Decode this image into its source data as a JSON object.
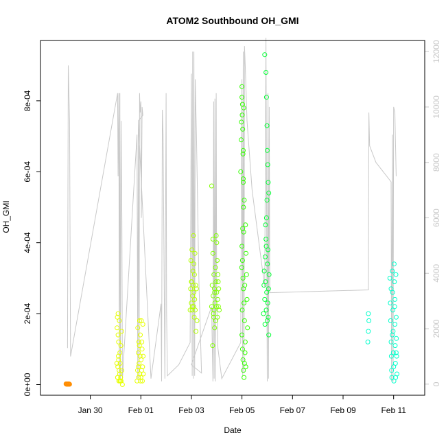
{
  "chart_data": {
    "type": "scatter",
    "title": "ATOM2 Southbound OH_GMI",
    "xlabel": "Date",
    "ylabel": "OH_GMI",
    "x_range": [
      -2.97,
      12.23
    ],
    "ylim": [
      -3e-05,
      0.00097
    ],
    "y2lim": [
      -400,
      12400
    ],
    "x_ticks": [
      {
        "value": -1,
        "label": "Jan 30"
      },
      {
        "value": 1,
        "label": "Feb 01"
      },
      {
        "value": 3,
        "label": "Feb 03"
      },
      {
        "value": 5,
        "label": "Feb 05"
      },
      {
        "value": 7,
        "label": "Feb 07"
      },
      {
        "value": 9,
        "label": "Feb 09"
      },
      {
        "value": 11,
        "label": "Feb 11"
      }
    ],
    "y_ticks": [
      {
        "value": 0,
        "label": "0e+00"
      },
      {
        "value": 0.0002,
        "label": "2e-04"
      },
      {
        "value": 0.0004,
        "label": "4e-04"
      },
      {
        "value": 0.0006,
        "label": "6e-04"
      },
      {
        "value": 0.0008,
        "label": "8e-04"
      }
    ],
    "y2_ticks": [
      {
        "value": 0,
        "label": "0"
      },
      {
        "value": 2000,
        "label": "2000"
      },
      {
        "value": 4000,
        "label": "4000"
      },
      {
        "value": 6000,
        "label": "6000"
      },
      {
        "value": 8000,
        "label": "8000"
      },
      {
        "value": 10000,
        "label": "10000"
      },
      {
        "value": 12000,
        "label": "12000"
      }
    ],
    "altitude_line_color": "#c8c8c8",
    "altitude_series": [
      [
        -1.9,
        1300
      ],
      [
        -1.87,
        11500
      ],
      [
        -1.82,
        9500
      ],
      [
        -1.78,
        1000
      ],
      [
        0.08,
        10500
      ],
      [
        0.1,
        7500
      ],
      [
        0.13,
        10500
      ],
      [
        0.15,
        300
      ],
      [
        0.17,
        10500
      ],
      [
        0.19,
        200
      ],
      [
        0.22,
        9500
      ],
      [
        0.25,
        6000
      ],
      [
        0.27,
        200
      ],
      [
        0.85,
        9000
      ],
      [
        0.88,
        200
      ],
      [
        0.9,
        9500
      ],
      [
        0.93,
        100
      ],
      [
        0.95,
        10500
      ],
      [
        0.97,
        9800
      ],
      [
        1.0,
        10200
      ],
      [
        1.02,
        6000
      ],
      [
        1.05,
        10000
      ],
      [
        1.08,
        9700
      ],
      [
        0.9,
        9500
      ],
      [
        1.4,
        200
      ],
      [
        1.8,
        2900
      ],
      [
        1.82,
        100
      ],
      [
        1.85,
        9900
      ],
      [
        1.88,
        9000
      ],
      [
        1.95,
        200
      ],
      [
        2.0,
        10500
      ],
      [
        2.02,
        2600
      ],
      [
        2.05,
        300
      ],
      [
        2.5,
        700
      ],
      [
        2.95,
        1500
      ],
      [
        3.0,
        11200
      ],
      [
        3.03,
        300
      ],
      [
        3.05,
        12000
      ],
      [
        3.08,
        200
      ],
      [
        3.1,
        12000
      ],
      [
        3.13,
        300
      ],
      [
        3.15,
        11000
      ],
      [
        3.2,
        9000
      ],
      [
        3.3,
        3600
      ],
      [
        3.4,
        400
      ],
      [
        3.0,
        700
      ],
      [
        3.8,
        2800
      ],
      [
        3.85,
        100
      ],
      [
        3.88,
        10200
      ],
      [
        3.9,
        200
      ],
      [
        3.93,
        10300
      ],
      [
        3.95,
        100
      ],
      [
        3.98,
        10500
      ],
      [
        4.0,
        3000
      ],
      [
        4.05,
        1300
      ],
      [
        4.2,
        200
      ],
      [
        4.95,
        1500
      ],
      [
        5.0,
        11000
      ],
      [
        5.03,
        300
      ],
      [
        5.05,
        12000
      ],
      [
        5.08,
        400
      ],
      [
        5.1,
        12200
      ],
      [
        5.13,
        11500
      ],
      [
        5.2,
        9500
      ],
      [
        5.4,
        7000
      ],
      [
        5.9,
        3500
      ],
      [
        5.95,
        12500
      ],
      [
        6.0,
        100
      ],
      [
        6.03,
        10500
      ],
      [
        6.05,
        200
      ],
      [
        6.08,
        10000
      ],
      [
        6.1,
        3300
      ],
      [
        10.0,
        3400
      ],
      [
        10.02,
        9800
      ],
      [
        10.05,
        8600
      ],
      [
        10.3,
        8000
      ],
      [
        10.9,
        7300
      ],
      [
        10.92,
        100
      ],
      [
        10.95,
        9000
      ],
      [
        10.98,
        100
      ],
      [
        11.0,
        10000
      ],
      [
        11.05,
        9800
      ],
      [
        11.1,
        7500
      ]
    ],
    "series": [
      {
        "color": "#ff8c00",
        "points": [
          [
            -1.96,
            2e-06
          ],
          [
            -1.94,
            1e-06
          ],
          [
            -1.92,
            2e-06
          ],
          [
            -1.9,
            1e-06
          ],
          [
            -1.88,
            2e-06
          ],
          [
            -1.86,
            1e-06
          ],
          [
            -1.84,
            2e-06
          ],
          [
            -1.82,
            1e-06
          ]
        ]
      },
      {
        "color": "#e6ff00",
        "points": [
          [
            0.05,
            6e-05
          ],
          [
            0.06,
            0.00016
          ],
          [
            0.07,
            0.00019
          ],
          [
            0.08,
            2e-05
          ],
          [
            0.09,
            5e-05
          ],
          [
            0.1,
            0.0002
          ],
          [
            0.11,
            8e-05
          ],
          [
            0.12,
            0.00012
          ],
          [
            0.13,
            1e-05
          ],
          [
            0.14,
            4e-05
          ],
          [
            0.15,
            0.00018
          ],
          [
            0.16,
            3e-05
          ],
          [
            0.17,
            9e-05
          ],
          [
            0.18,
            6e-05
          ],
          [
            0.2,
            2e-05
          ],
          [
            0.21,
            0.00011
          ],
          [
            0.22,
            1e-05
          ],
          [
            0.24,
            0.00015
          ],
          [
            0.25,
            4e-05
          ],
          [
            0.27,
            0.0
          ],
          [
            0.08,
            2e-05
          ],
          [
            0.1,
            0.00014
          ],
          [
            0.12,
            7e-05
          ],
          [
            0.17,
            1e-05
          ],
          [
            0.2,
            1e-05
          ],
          [
            0.85,
            1e-05
          ],
          [
            0.87,
            4e-05
          ],
          [
            0.88,
            0.00016
          ],
          [
            0.9,
            9e-05
          ],
          [
            0.91,
            2e-05
          ],
          [
            0.92,
            0.00012
          ],
          [
            0.93,
            6e-05
          ],
          [
            0.95,
            0.00018
          ],
          [
            0.96,
            3e-05
          ],
          [
            0.97,
            8e-05
          ],
          [
            0.98,
            0.00014
          ],
          [
            1.0,
            2e-05
          ],
          [
            1.01,
            7e-05
          ],
          [
            1.02,
            0.00018
          ],
          [
            1.03,
            4e-05
          ],
          [
            1.05,
            0.0001
          ],
          [
            1.06,
            1e-05
          ],
          [
            1.07,
            5e-05
          ],
          [
            1.08,
            0.00017
          ],
          [
            1.1,
            3e-05
          ],
          [
            0.9,
            5e-05
          ],
          [
            0.94,
            0.00011
          ],
          [
            0.99,
            1e-05
          ],
          [
            1.04,
            0.00012
          ],
          [
            1.09,
            8e-05
          ]
        ]
      },
      {
        "color": "#b3ff00",
        "points": [
          [
            2.95,
            0.00021
          ],
          [
            2.97,
            0.00027
          ],
          [
            2.98,
            0.00035
          ],
          [
            3.0,
            0.00023
          ],
          [
            3.01,
            0.00029
          ],
          [
            3.02,
            0.00038
          ],
          [
            3.03,
            0.00021
          ],
          [
            3.05,
            0.00025
          ],
          [
            3.06,
            0.00032
          ],
          [
            3.07,
            0.00028
          ],
          [
            3.08,
            0.00042
          ],
          [
            3.09,
            0.00022
          ],
          [
            3.1,
            0.00026
          ],
          [
            3.11,
            0.00019
          ],
          [
            3.12,
            0.00031
          ],
          [
            3.13,
            0.00024
          ],
          [
            3.14,
            0.00037
          ],
          [
            3.15,
            0.00021
          ],
          [
            3.17,
            0.00028
          ],
          [
            3.18,
            0.00015
          ],
          [
            3.2,
            0.00027
          ],
          [
            3.22,
            0.00018
          ],
          [
            3.1,
            0.00034
          ],
          [
            3.0,
            0.00029
          ],
          [
            3.04,
            0.00022
          ]
        ]
      },
      {
        "color": "#80ff00",
        "points": [
          [
            3.8,
            0.00022
          ],
          [
            3.82,
            0.00028
          ],
          [
            3.84,
            0.00011
          ],
          [
            3.85,
            0.00037
          ],
          [
            3.86,
            0.00025
          ],
          [
            3.88,
            0.00019
          ],
          [
            3.89,
            0.00031
          ],
          [
            3.9,
            0.00021
          ],
          [
            3.91,
            0.00027
          ],
          [
            3.92,
            0.00016
          ],
          [
            3.93,
            0.00023
          ],
          [
            3.95,
            0.00033
          ],
          [
            3.96,
            0.00018
          ],
          [
            3.97,
            0.00029
          ],
          [
            3.98,
            0.00042
          ],
          [
            3.99,
            0.00022
          ],
          [
            4.0,
            0.00026
          ],
          [
            4.02,
            0.00035
          ],
          [
            4.03,
            0.00019
          ],
          [
            4.04,
            0.00024
          ],
          [
            4.05,
            0.00031
          ],
          [
            4.07,
            0.00022
          ],
          [
            4.08,
            0.00027
          ],
          [
            3.8,
            0.00056
          ],
          [
            3.85,
            0.00041
          ],
          [
            4.0,
            0.0004
          ],
          [
            3.87,
            0.0002
          ],
          [
            3.92,
            0.00026
          ],
          [
            4.06,
            0.00029
          ],
          [
            4.1,
            0.00021
          ]
        ]
      },
      {
        "color": "#33ff00",
        "points": [
          [
            4.95,
            0.0006
          ],
          [
            4.97,
            0.00069
          ],
          [
            4.98,
            0.00074
          ],
          [
            5.0,
            0.00081
          ],
          [
            5.0,
            0.00084
          ],
          [
            5.01,
            0.00076
          ],
          [
            5.02,
            0.00079
          ],
          [
            5.03,
            0.00072
          ],
          [
            5.04,
            0.00065
          ],
          [
            5.05,
            0.00057
          ],
          [
            5.06,
            0.0005
          ],
          [
            5.07,
            0.00043
          ],
          [
            5.0,
            0.00039
          ],
          [
            5.02,
            0.00035
          ],
          [
            5.04,
            0.0003
          ],
          [
            5.06,
            0.00027
          ],
          [
            5.08,
            0.00023
          ],
          [
            5.1,
            0.00018
          ],
          [
            5.0,
            0.00014
          ],
          [
            5.02,
            0.0001
          ],
          [
            5.04,
            7e-05
          ],
          [
            5.06,
            4e-05
          ],
          [
            5.08,
            2e-05
          ],
          [
            5.1,
            6e-05
          ],
          [
            5.12,
            9e-05
          ],
          [
            5.14,
            0.00045
          ],
          [
            5.16,
            0.00037
          ],
          [
            5.18,
            0.00031
          ],
          [
            5.2,
            0.00024
          ],
          [
            5.22,
            0.00016
          ],
          [
            5.05,
            0.00066
          ],
          [
            5.07,
            0.00078
          ],
          [
            5.09,
            0.00052
          ],
          [
            5.11,
            0.00028
          ],
          [
            5.13,
            0.00012
          ],
          [
            4.99,
            0.00033
          ],
          [
            5.01,
            0.00021
          ],
          [
            5.03,
            0.00044
          ],
          [
            5.05,
            0.00058
          ],
          [
            5.15,
            5e-05
          ]
        ]
      },
      {
        "color": "#00ff33",
        "points": [
          [
            5.85,
            0.0002
          ],
          [
            5.87,
            0.00028
          ],
          [
            5.88,
            0.00032
          ],
          [
            5.9,
            0.00024
          ],
          [
            5.91,
            0.00017
          ],
          [
            5.92,
            0.00036
          ],
          [
            5.93,
            0.00029
          ],
          [
            5.95,
            0.00041
          ],
          [
            5.96,
            0.00021
          ],
          [
            5.97,
            0.00047
          ],
          [
            5.98,
            0.00026
          ],
          [
            5.99,
            0.00052
          ],
          [
            6.0,
            0.00018
          ],
          [
            6.01,
            0.00034
          ],
          [
            6.02,
            0.00023
          ],
          [
            6.03,
            0.00038
          ],
          [
            6.04,
            0.00019
          ],
          [
            6.05,
            0.00027
          ],
          [
            6.06,
            0.00014
          ],
          [
            6.07,
            0.00031
          ],
          [
            5.9,
            0.00093
          ],
          [
            5.95,
            0.00088
          ],
          [
            5.97,
            0.00081
          ],
          [
            5.99,
            0.00073
          ],
          [
            6.0,
            0.00066
          ],
          [
            6.02,
            0.00062
          ],
          [
            6.04,
            0.00057
          ],
          [
            6.06,
            0.00054
          ],
          [
            5.93,
            0.00045
          ],
          [
            5.96,
            0.00039
          ]
        ]
      },
      {
        "color": "#00ffcc",
        "points": [
          [
            10.0,
            0.0002
          ],
          [
            10.02,
            0.00018
          ],
          [
            10.0,
            0.00015
          ],
          [
            9.98,
            0.00012
          ],
          [
            10.85,
            0.0003
          ],
          [
            10.87,
            0.00023
          ],
          [
            10.88,
            0.00018
          ],
          [
            10.9,
            0.00012
          ],
          [
            10.91,
            8e-05
          ],
          [
            10.92,
            4e-05
          ],
          [
            10.93,
            2e-05
          ],
          [
            10.95,
            0.00032
          ],
          [
            10.96,
            0.00026
          ],
          [
            10.97,
            0.00021
          ],
          [
            10.98,
            0.00015
          ],
          [
            10.99,
            9e-05
          ],
          [
            11.0,
            5e-05
          ],
          [
            11.01,
            1e-05
          ],
          [
            11.02,
            0.00034
          ],
          [
            11.03,
            0.00029
          ],
          [
            11.04,
            0.00022
          ],
          [
            11.05,
            0.00017
          ],
          [
            11.06,
            0.00011
          ],
          [
            11.07,
            6e-05
          ],
          [
            11.08,
            2e-05
          ],
          [
            11.09,
            0.00031
          ],
          [
            11.1,
            0.00019
          ],
          [
            11.11,
            0.00013
          ],
          [
            11.12,
            8e-05
          ],
          [
            11.13,
            3e-05
          ],
          [
            10.9,
            0.00027
          ],
          [
            10.95,
            0.00014
          ],
          [
            11.05,
            0.00024
          ],
          [
            11.1,
            9e-05
          ]
        ]
      }
    ]
  }
}
